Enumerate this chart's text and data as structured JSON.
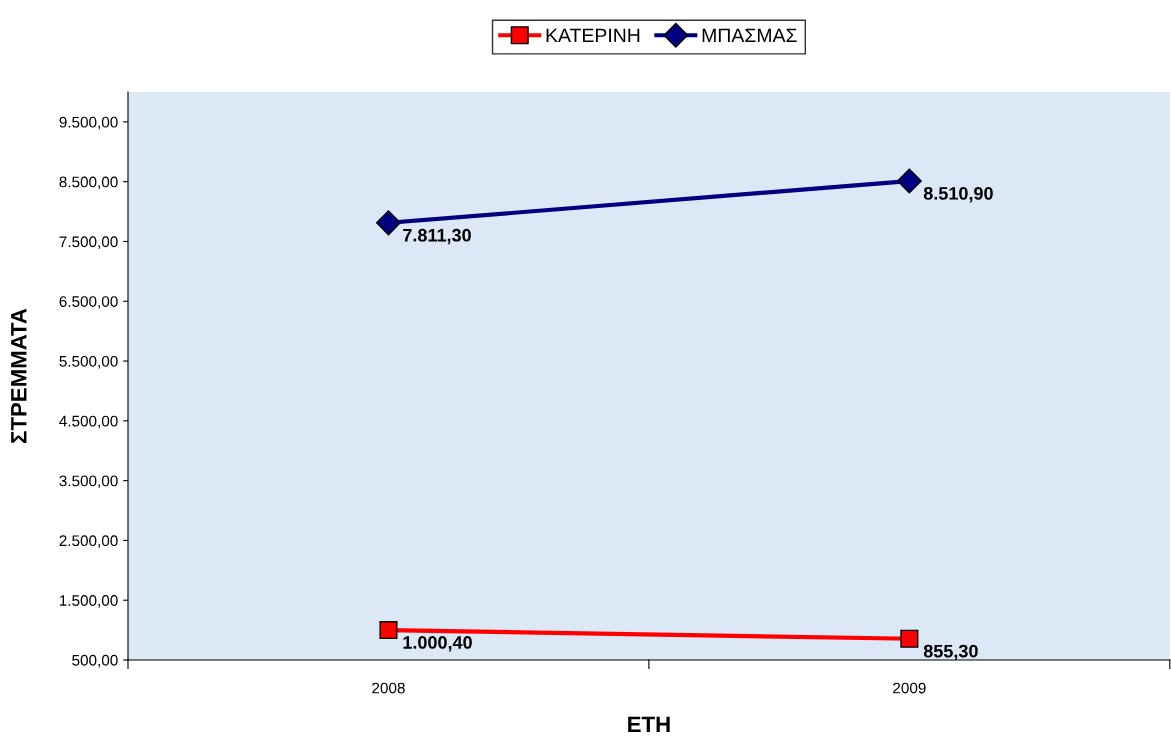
{
  "chart_data": {
    "type": "line",
    "xlabel": "ΕΤΗ",
    "ylabel": "ΣΤΡΕΜΜΑΤΑ",
    "categories": [
      "2008",
      "2009"
    ],
    "series": [
      {
        "name": "ΚΑΤΕΡΙΝΗ",
        "color": "#ff0000",
        "marker": "square",
        "values": [
          1000.4,
          855.3
        ],
        "value_labels": [
          "1.000,40",
          "855,30"
        ]
      },
      {
        "name": "ΜΠΑΣΜΑΣ",
        "color": "#000080",
        "marker": "diamond",
        "values": [
          7811.3,
          8510.9
        ],
        "value_labels": [
          "7.811,30",
          "8.510,90"
        ]
      }
    ],
    "ylim": [
      500,
      10000
    ],
    "yticks": [
      {
        "value": 500,
        "label": "500,00"
      },
      {
        "value": 1500,
        "label": "1.500,00"
      },
      {
        "value": 2500,
        "label": "2.500,00"
      },
      {
        "value": 3500,
        "label": "3.500,00"
      },
      {
        "value": 4500,
        "label": "4.500,00"
      },
      {
        "value": 5500,
        "label": "5.500,00"
      },
      {
        "value": 6500,
        "label": "6.500,00"
      },
      {
        "value": 7500,
        "label": "7.500,00"
      },
      {
        "value": 8500,
        "label": "8.500,00"
      },
      {
        "value": 9500,
        "label": "9.500,00"
      }
    ],
    "grid": false,
    "legend": "top",
    "line_style": "solid"
  }
}
